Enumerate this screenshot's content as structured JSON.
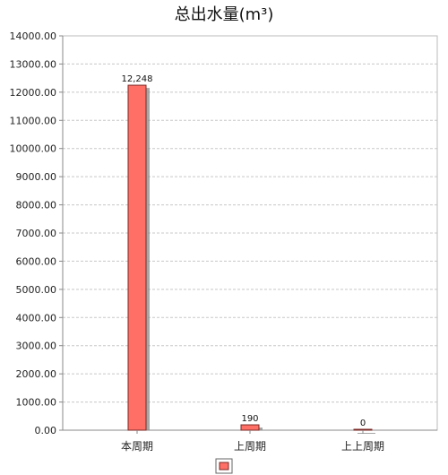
{
  "chart_data": {
    "type": "bar",
    "title": "总出水量(m³)",
    "categories": [
      "本周期",
      "上周期",
      "上上周期"
    ],
    "series": [
      {
        "values": [
          12248,
          190,
          0
        ],
        "value_labels": [
          "12,248",
          "190",
          "0"
        ],
        "color": "#ff6f66"
      }
    ],
    "xlabel": "",
    "ylabel": "",
    "ylim": [
      0,
      14000
    ],
    "yticks": [
      0,
      1000,
      2000,
      3000,
      4000,
      5000,
      6000,
      7000,
      8000,
      9000,
      10000,
      11000,
      12000,
      13000,
      14000
    ],
    "ytick_labels": [
      "0.00",
      "1000.00",
      "2000.00",
      "3000.00",
      "4000.00",
      "5000.00",
      "6000.00",
      "7000.00",
      "8000.00",
      "9000.00",
      "10000.00",
      "11000.00",
      "12000.00",
      "13000.00",
      "14000.00"
    ],
    "grid": true,
    "legend": "bottom-center"
  },
  "colors": {
    "bar": "#ff6f66",
    "bar_shadow": "#8a8a8a",
    "grid": "#c8c8c8",
    "axis": "#888888"
  }
}
